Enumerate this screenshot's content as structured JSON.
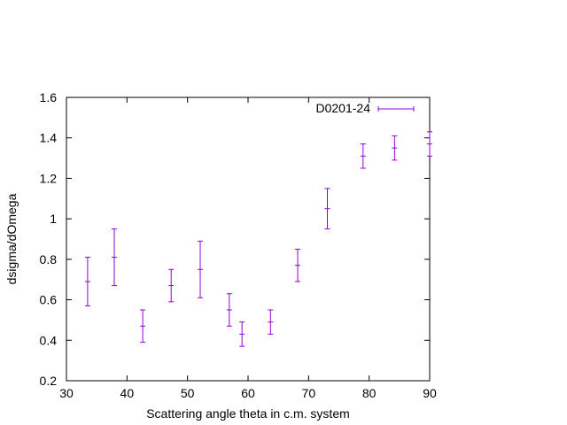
{
  "chart_data": {
    "type": "scatter",
    "xlabel": "Scattering angle theta in c.m. system",
    "ylabel": "dsigma/dOmega",
    "xlim": [
      30,
      90
    ],
    "ylim": [
      0.2,
      1.6
    ],
    "xticks": [
      30,
      40,
      50,
      60,
      70,
      80,
      90
    ],
    "yticks": [
      0.2,
      0.4,
      0.6,
      0.8,
      1.0,
      1.2,
      1.4,
      1.6
    ],
    "xtick_labels": [
      "30",
      "40",
      "50",
      "60",
      "70",
      "80",
      "90"
    ],
    "ytick_labels": [
      "0.2",
      "0.4",
      "0.6",
      "0.8",
      "1",
      "1.2",
      "1.4",
      "1.6"
    ],
    "grid": false,
    "legend_position": "top-right",
    "series": [
      {
        "name": "D0201-24",
        "color": "#9400d3",
        "points": [
          {
            "x": 33.5,
            "y": 0.69,
            "ylow": 0.57,
            "yhigh": 0.81
          },
          {
            "x": 37.9,
            "y": 0.81,
            "ylow": 0.67,
            "yhigh": 0.95
          },
          {
            "x": 42.6,
            "y": 0.47,
            "ylow": 0.39,
            "yhigh": 0.55
          },
          {
            "x": 47.3,
            "y": 0.67,
            "ylow": 0.59,
            "yhigh": 0.75
          },
          {
            "x": 52.1,
            "y": 0.75,
            "ylow": 0.61,
            "yhigh": 0.89
          },
          {
            "x": 56.9,
            "y": 0.55,
            "ylow": 0.47,
            "yhigh": 0.63
          },
          {
            "x": 59.0,
            "y": 0.43,
            "ylow": 0.37,
            "yhigh": 0.49
          },
          {
            "x": 63.7,
            "y": 0.49,
            "ylow": 0.43,
            "yhigh": 0.55
          },
          {
            "x": 68.2,
            "y": 0.77,
            "ylow": 0.69,
            "yhigh": 0.85
          },
          {
            "x": 73.1,
            "y": 1.05,
            "ylow": 0.95,
            "yhigh": 1.15
          },
          {
            "x": 79.0,
            "y": 1.31,
            "ylow": 1.25,
            "yhigh": 1.37
          },
          {
            "x": 84.2,
            "y": 1.35,
            "ylow": 1.29,
            "yhigh": 1.41
          },
          {
            "x": 90.0,
            "y": 1.37,
            "ylow": 1.31,
            "yhigh": 1.43
          }
        ]
      }
    ]
  }
}
